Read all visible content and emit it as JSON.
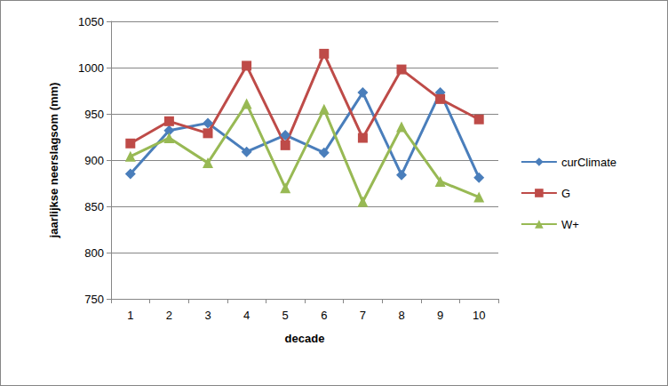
{
  "chart_data": {
    "type": "line",
    "x_label": "decade",
    "y_label": "jaarlijkse neerslagsom (mm)",
    "categories": [
      "1",
      "2",
      "3",
      "4",
      "5",
      "6",
      "7",
      "8",
      "9",
      "10"
    ],
    "series": [
      {
        "name": "curClimate",
        "color": "#4a7ebb",
        "marker": "diamond",
        "values": [
          885,
          932,
          940,
          909,
          927,
          908,
          973,
          884,
          973,
          881
        ]
      },
      {
        "name": "G",
        "color": "#be4b48",
        "marker": "square",
        "values": [
          918,
          942,
          929,
          1002,
          916,
          1015,
          924,
          998,
          966,
          944
        ]
      },
      {
        "name": "W+",
        "color": "#98b954",
        "marker": "triangle",
        "values": [
          904,
          924,
          897,
          961,
          870,
          955,
          855,
          936,
          877,
          860
        ]
      }
    ],
    "ylim": [
      750,
      1050
    ],
    "yticks": [
      750,
      800,
      850,
      900,
      950,
      1000,
      1050
    ],
    "grid": true,
    "legend": "right"
  }
}
